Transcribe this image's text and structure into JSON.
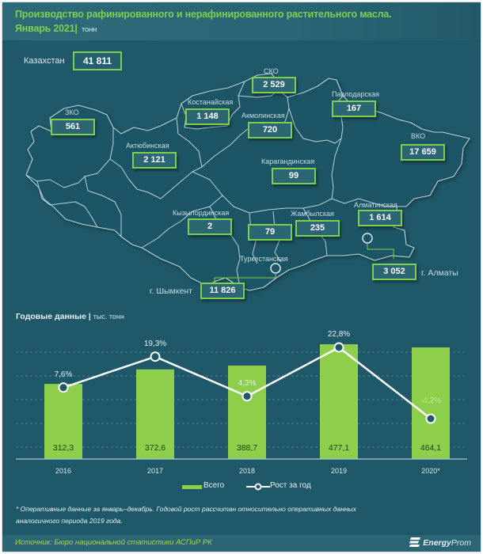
{
  "header": {
    "title_line1": "Производство рафинированного и нерафинированного растительного масла.",
    "title_line2": "Январь 2021",
    "separator": "|",
    "unit": "тонн"
  },
  "map": {
    "total_label": "Казахстан",
    "total_value": "41 811",
    "regions": [
      {
        "name": "ЗКО",
        "value": "561"
      },
      {
        "name": "Актюбинская",
        "value": "2 121"
      },
      {
        "name": "Костанайская",
        "value": "1 148"
      },
      {
        "name": "СКО",
        "value": "2 529"
      },
      {
        "name": "Акмолинская",
        "value": "720"
      },
      {
        "name": "Павлодарская",
        "value": "167"
      },
      {
        "name": "ВКО",
        "value": "17 659"
      },
      {
        "name": "Карагандинская",
        "value": "99"
      },
      {
        "name": "Кызылординская",
        "value": "2"
      },
      {
        "name": "Туркестанская",
        "value": "79"
      },
      {
        "name": "Жамбылская",
        "value": "235"
      },
      {
        "name": "Алматинская",
        "value": "1 614"
      }
    ],
    "cities": [
      {
        "name": "г. Шымкент",
        "value": "11 826"
      },
      {
        "name": "г. Алматы",
        "value": "3 052"
      }
    ]
  },
  "chart_data": {
    "type": "bar",
    "title": "Годовые данные",
    "unit": "тыс. тонн",
    "categories": [
      "2016",
      "2017",
      "2018",
      "2019",
      "2020*"
    ],
    "series": [
      {
        "name": "Всего",
        "type": "bar",
        "color": "#8dcf4a",
        "values": [
          312.3,
          372.6,
          388.7,
          477.1,
          464.1
        ],
        "labels": [
          "312,3",
          "372,6",
          "388,7",
          "477,1",
          "464,1"
        ]
      },
      {
        "name": "Рост за год",
        "type": "line",
        "color": "#ffffff",
        "values": [
          7.6,
          19.3,
          4.3,
          22.8,
          -4.2
        ],
        "labels": [
          "7,6%",
          "19,3%",
          "4,3%",
          "22,8%",
          "-4,2%"
        ]
      }
    ],
    "xlabel": "",
    "ylabel": "",
    "grid": true,
    "legend_position": "bottom"
  },
  "legend": {
    "bar_label": "Всего",
    "line_label": "Рост за год"
  },
  "footnote": {
    "line1": "* Оперативные данные за январь–декабрь. Годовой рост рассчитан относительно оперативных данных",
    "line2": "аналогичного периода 2019 года."
  },
  "source": "Источник: Бюро национальной статистики АСПиР РК",
  "logo": {
    "bold": "Energy",
    "normal": "Prom"
  },
  "colors": {
    "background": "#1f5868",
    "header": "#2a6675",
    "accent_green": "#7fcf4d",
    "bar_green": "#8dcf4a"
  }
}
